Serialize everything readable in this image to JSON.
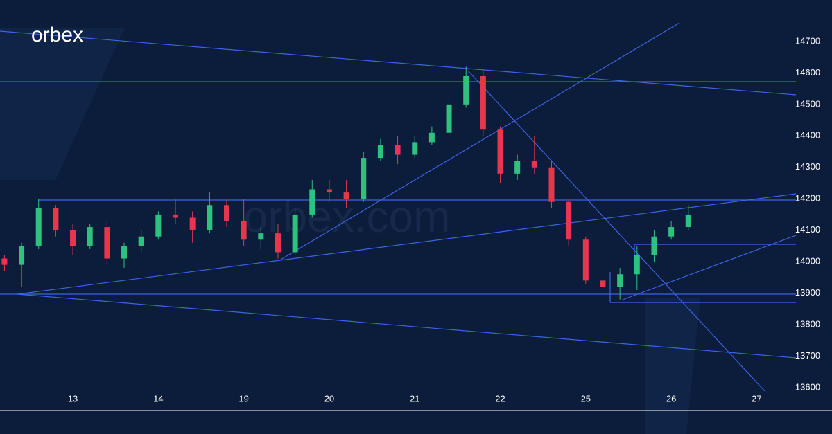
{
  "brand": "orbex",
  "watermark": "orbex.com",
  "chart_data": {
    "type": "candlestick",
    "x": [
      -0.8,
      -0.6,
      -0.4,
      -0.2,
      0,
      0.2,
      0.4,
      0.6,
      0.8,
      1,
      1.2,
      1.4,
      1.6,
      1.8,
      2,
      2.2,
      2.4,
      2.6,
      2.8,
      3,
      3.2,
      3.4,
      3.6,
      3.8,
      4,
      4.2,
      4.4,
      4.6,
      4.8,
      5,
      5.2,
      5.4,
      5.6,
      5.8,
      6,
      6.2,
      6.4,
      6.6,
      6.8,
      7,
      7.2
    ],
    "open": [
      14010,
      13990,
      14050,
      14170,
      14100,
      14050,
      14110,
      14010,
      14050,
      14080,
      14150,
      14140,
      14100,
      14180,
      14130,
      14070,
      14090,
      14030,
      14150,
      14230,
      14220,
      14200,
      14330,
      14370,
      14340,
      14380,
      14410,
      14500,
      14590,
      14420,
      14280,
      14320,
      14300,
      14190,
      14070,
      13940,
      13920,
      13960,
      14020,
      14080,
      14110
    ],
    "high": [
      14020,
      14060,
      14200,
      14180,
      14120,
      14120,
      14130,
      14060,
      14100,
      14160,
      14200,
      14160,
      14220,
      14200,
      14200,
      14110,
      14120,
      14170,
      14260,
      14260,
      14260,
      14350,
      14390,
      14400,
      14400,
      14430,
      14520,
      14620,
      14610,
      14430,
      14340,
      14400,
      14320,
      14200,
      14080,
      13990,
      13980,
      14050,
      14100,
      14130,
      14180
    ],
    "low": [
      13970,
      13920,
      14040,
      14080,
      14020,
      14040,
      13990,
      13980,
      14030,
      14070,
      14120,
      14060,
      14090,
      14110,
      14050,
      14040,
      14010,
      14020,
      14140,
      14190,
      14170,
      14190,
      14320,
      14310,
      14330,
      14370,
      14400,
      14490,
      14400,
      14250,
      14260,
      14280,
      14170,
      14050,
      13930,
      13880,
      13880,
      13910,
      14000,
      14070,
      14100
    ],
    "close": [
      13990,
      14050,
      14170,
      14100,
      14050,
      14110,
      14010,
      14050,
      14080,
      14150,
      14140,
      14100,
      14180,
      14130,
      14070,
      14090,
      14030,
      14150,
      14230,
      14220,
      14200,
      14330,
      14370,
      14340,
      14380,
      14410,
      14500,
      14590,
      14420,
      14280,
      14320,
      14300,
      14190,
      14070,
      13940,
      13920,
      13960,
      14020,
      14080,
      14110,
      14150
    ],
    "up_color": "#2ec27e",
    "down_color": "#e8364f",
    "xlim": [
      -0.852,
      8.313
    ],
    "xticks": [
      {
        "value": 0,
        "label": "13"
      },
      {
        "value": 1,
        "label": "14"
      },
      {
        "value": 2,
        "label": "19"
      },
      {
        "value": 3,
        "label": "20"
      },
      {
        "value": 4,
        "label": "21"
      },
      {
        "value": 5,
        "label": "22"
      },
      {
        "value": 6,
        "label": "25"
      },
      {
        "value": 7,
        "label": "26"
      },
      {
        "value": 8,
        "label": "27"
      }
    ],
    "ylim": [
      13527,
      14832
    ],
    "yticks": [
      13600,
      13700,
      13800,
      13900,
      14000,
      14100,
      14200,
      14300,
      14400,
      14500,
      14600,
      14700
    ],
    "grid": false
  }
}
